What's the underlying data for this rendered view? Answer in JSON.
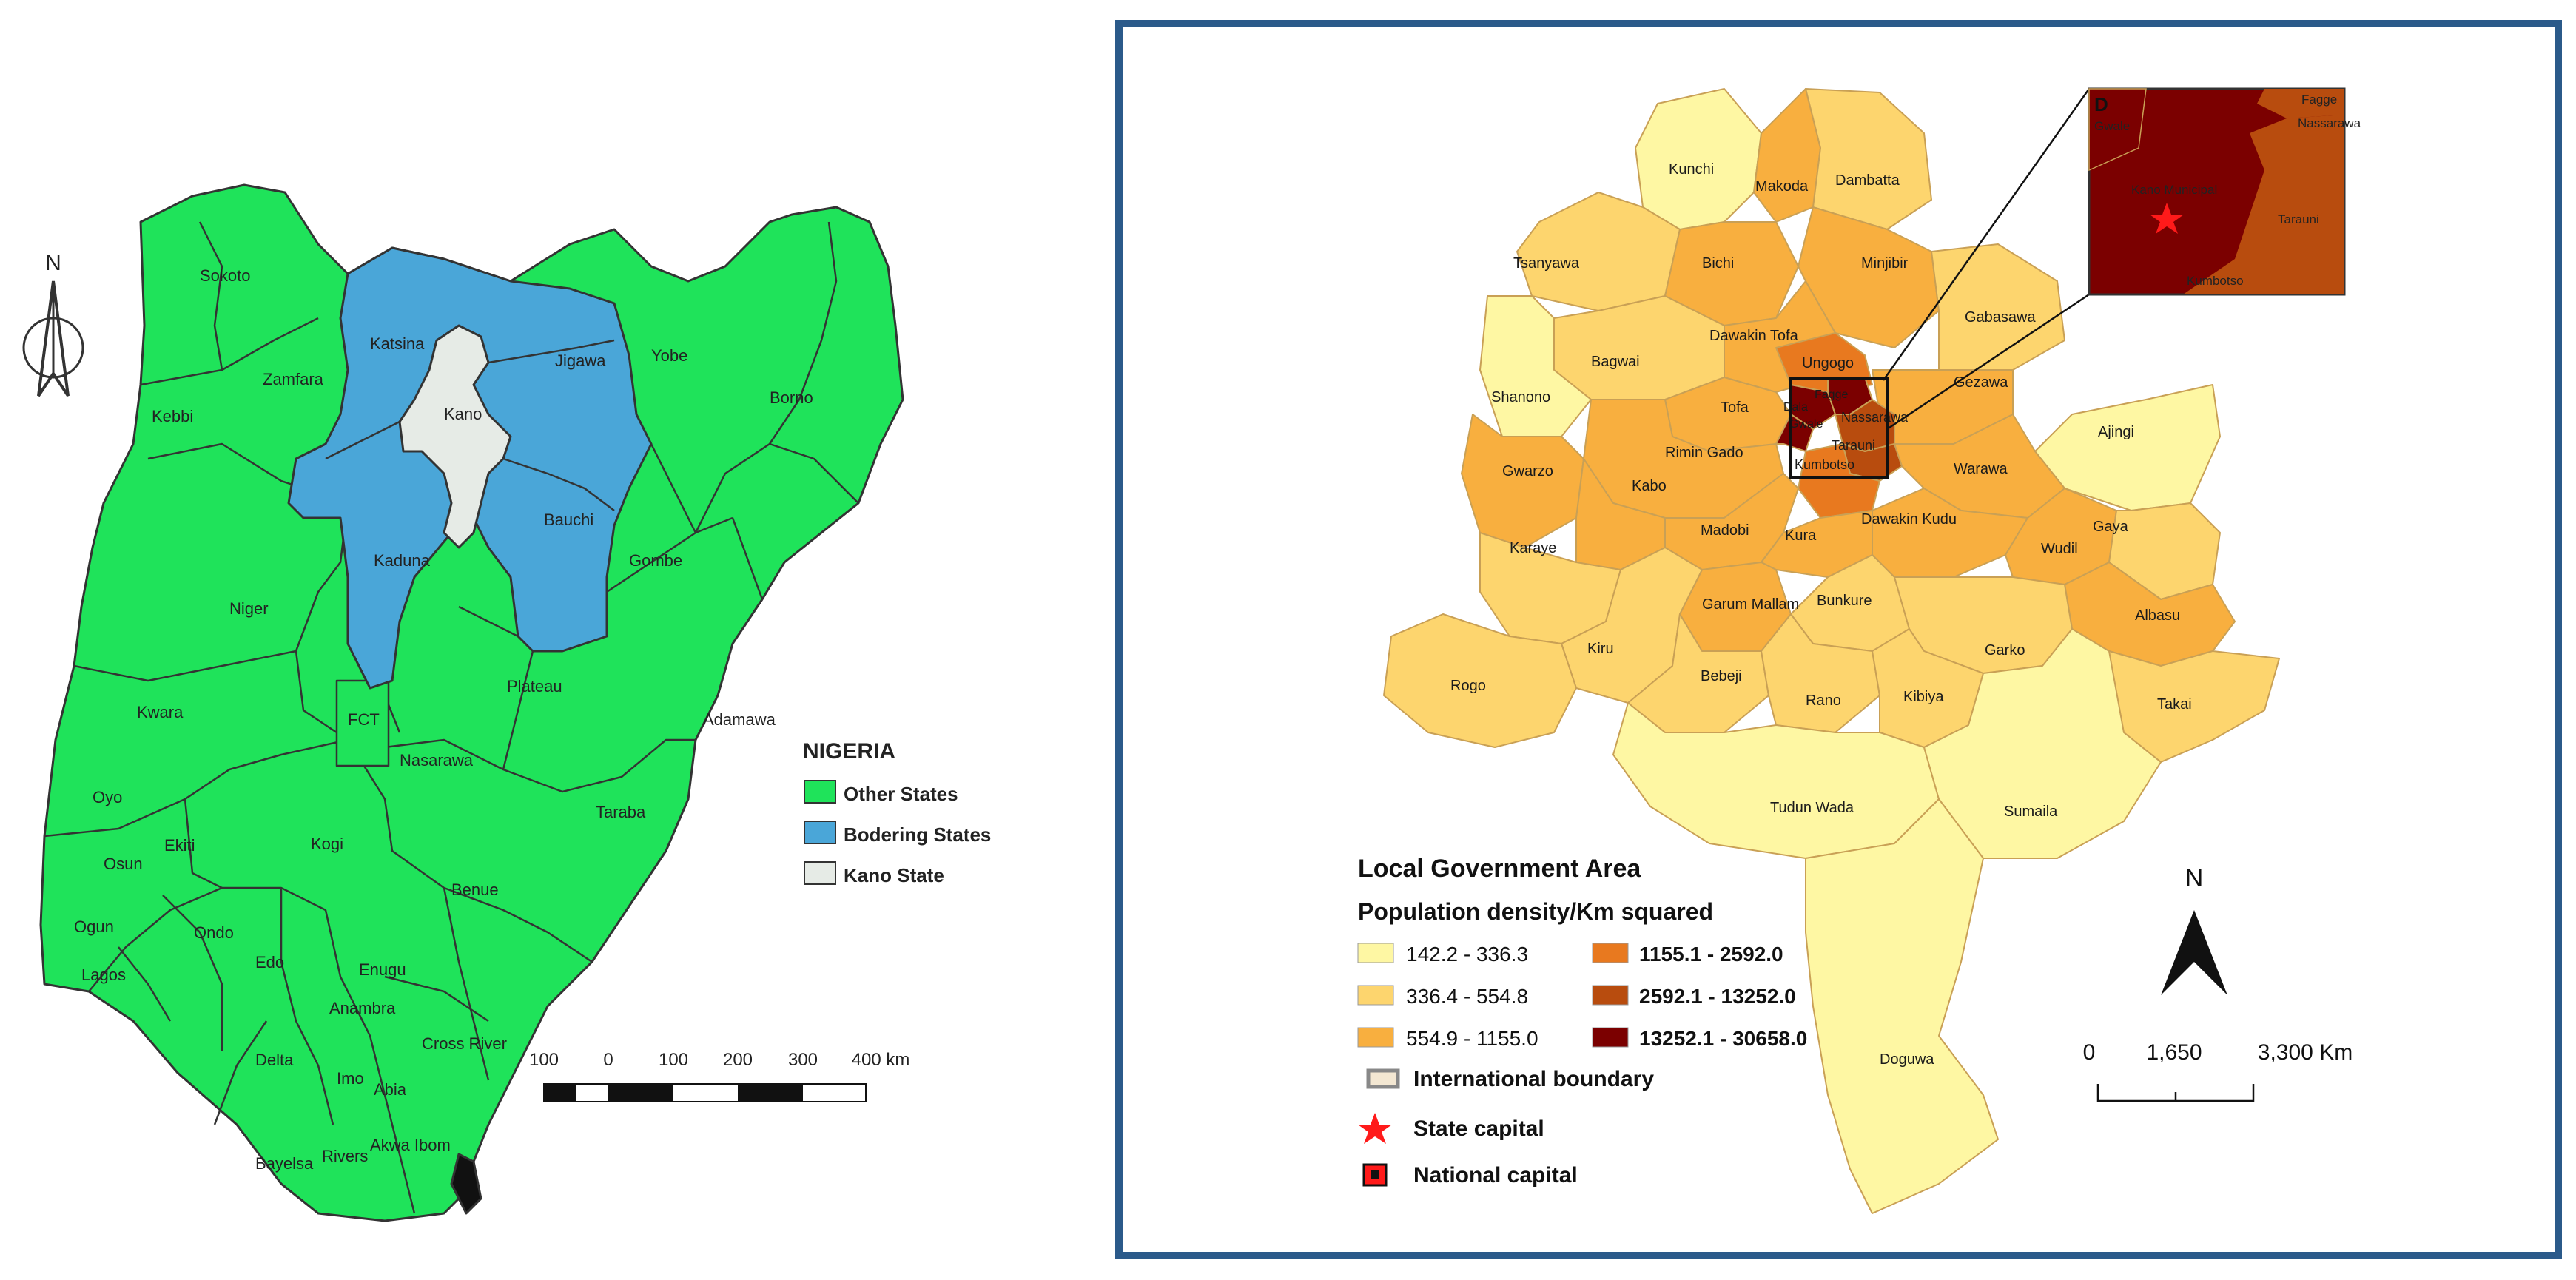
{
  "nigeria_map": {
    "north_arrow": {
      "label": "N"
    },
    "states": [
      {
        "name": "Sokoto",
        "status": "other"
      },
      {
        "name": "Zamfara",
        "status": "other"
      },
      {
        "name": "Kebbi",
        "status": "other"
      },
      {
        "name": "Katsina",
        "status": "bordering"
      },
      {
        "name": "Kano",
        "status": "kano"
      },
      {
        "name": "Jigawa",
        "status": "bordering"
      },
      {
        "name": "Yobe",
        "status": "other"
      },
      {
        "name": "Borno",
        "status": "other"
      },
      {
        "name": "Kaduna",
        "status": "bordering"
      },
      {
        "name": "Bauchi",
        "status": "bordering"
      },
      {
        "name": "Gombe",
        "status": "other"
      },
      {
        "name": "Niger",
        "status": "other"
      },
      {
        "name": "Plateau",
        "status": "other"
      },
      {
        "name": "Adamawa",
        "status": "other"
      },
      {
        "name": "Kwara",
        "status": "other"
      },
      {
        "name": "FCT",
        "status": "other"
      },
      {
        "name": "Nasarawa",
        "status": "other"
      },
      {
        "name": "Oyo",
        "status": "other"
      },
      {
        "name": "Taraba",
        "status": "other"
      },
      {
        "name": "Osun",
        "status": "other"
      },
      {
        "name": "Ekiti",
        "status": "other"
      },
      {
        "name": "Kogi",
        "status": "other"
      },
      {
        "name": "Benue",
        "status": "other"
      },
      {
        "name": "Ogun",
        "status": "other"
      },
      {
        "name": "Ondo",
        "status": "other"
      },
      {
        "name": "Edo",
        "status": "other"
      },
      {
        "name": "Enugu",
        "status": "other"
      },
      {
        "name": "Lagos",
        "status": "other"
      },
      {
        "name": "Anambra",
        "status": "other"
      },
      {
        "name": "Delta",
        "status": "other"
      },
      {
        "name": "Imo",
        "status": "other"
      },
      {
        "name": "Abia",
        "status": "other"
      },
      {
        "name": "Cross River",
        "status": "other"
      },
      {
        "name": "Bayelsa",
        "status": "other"
      },
      {
        "name": "Rivers",
        "status": "other"
      },
      {
        "name": "Akwa Ibom",
        "status": "other"
      }
    ],
    "legend": {
      "title": "NIGERIA",
      "items": [
        {
          "label": "Other States",
          "color": "#1fe35a"
        },
        {
          "label": "Bodering States",
          "color": "#4aa6d8"
        },
        {
          "label": "Kano State",
          "color": "#e6ebe6"
        }
      ]
    },
    "scale_bar": {
      "ticks": [
        "100",
        "0",
        "100",
        "200",
        "300",
        "400 km"
      ]
    }
  },
  "kano_map": {
    "lgas": [
      {
        "name": "Kunchi",
        "density_class": 1
      },
      {
        "name": "Makoda",
        "density_class": 3
      },
      {
        "name": "Dambatta",
        "density_class": 2
      },
      {
        "name": "Tsanyawa",
        "density_class": 2
      },
      {
        "name": "Bichi",
        "density_class": 3
      },
      {
        "name": "Minjibir",
        "density_class": 3
      },
      {
        "name": "Gabasawa",
        "density_class": 2
      },
      {
        "name": "Dawakin Tofa",
        "density_class": 3
      },
      {
        "name": "Bagwai",
        "density_class": 2
      },
      {
        "name": "Ungogo",
        "density_class": 4
      },
      {
        "name": "Gezawa",
        "density_class": 3
      },
      {
        "name": "Shanono",
        "density_class": 1
      },
      {
        "name": "Tofa",
        "density_class": 3
      },
      {
        "name": "Dala",
        "density_class": 6
      },
      {
        "name": "Fagge",
        "density_class": 6
      },
      {
        "name": "Gwale",
        "density_class": 6
      },
      {
        "name": "Nassarawa",
        "density_class": 5
      },
      {
        "name": "Tarauni",
        "density_class": 5
      },
      {
        "name": "Kumbotso",
        "density_class": 4
      },
      {
        "name": "Ajingi",
        "density_class": 1
      },
      {
        "name": "Rimin Gado",
        "density_class": 3
      },
      {
        "name": "Gwarzo",
        "density_class": 3
      },
      {
        "name": "Kabo",
        "density_class": 3
      },
      {
        "name": "Warawa",
        "density_class": 3
      },
      {
        "name": "Madobi",
        "density_class": 3
      },
      {
        "name": "Kura",
        "density_class": 3
      },
      {
        "name": "Dawakin Kudu",
        "density_class": 3
      },
      {
        "name": "Wudil",
        "density_class": 3
      },
      {
        "name": "Gaya",
        "density_class": 2
      },
      {
        "name": "Karaye",
        "density_class": 2
      },
      {
        "name": "Garum Mallam",
        "density_class": 3
      },
      {
        "name": "Bunkure",
        "density_class": 2
      },
      {
        "name": "Albasu",
        "density_class": 3
      },
      {
        "name": "Kiru",
        "density_class": 2
      },
      {
        "name": "Garko",
        "density_class": 2
      },
      {
        "name": "Rogo",
        "density_class": 2
      },
      {
        "name": "Bebeji",
        "density_class": 2
      },
      {
        "name": "Rano",
        "density_class": 2
      },
      {
        "name": "Kibiya",
        "density_class": 2
      },
      {
        "name": "Takai",
        "density_class": 2
      },
      {
        "name": "Tudun Wada",
        "density_class": 1
      },
      {
        "name": "Sumaila",
        "density_class": 1
      },
      {
        "name": "Doguwa",
        "density_class": 1
      }
    ],
    "inset": {
      "letter": "D",
      "labels": [
        "Fagge",
        "Gwale",
        "Nassarawa",
        "Kano Municipal",
        "Tarauni",
        "Kumbotso"
      ]
    },
    "legend": {
      "title": "Local Government Area",
      "subtitle": "Population density/Km squared",
      "classes": [
        {
          "range": "142.2 - 336.3",
          "color": "#fef7a3"
        },
        {
          "range": "336.4 - 554.8",
          "color": "#fdd56e"
        },
        {
          "range": "554.9 - 1155.0",
          "color": "#f8af3f"
        },
        {
          "range": "1155.1 - 2592.0",
          "color": "#e8791f"
        },
        {
          "range": "2592.1 - 13252.0",
          "color": "#b84c0e"
        },
        {
          "range": "13252.1 - 30658.0",
          "color": "#7b0000"
        }
      ],
      "symbols": [
        {
          "label": "International boundary",
          "icon": "boundary-icon"
        },
        {
          "label": "State capital",
          "icon": "red-star-icon"
        },
        {
          "label": "National capital",
          "icon": "square-dot-icon"
        }
      ]
    },
    "north_arrow": {
      "label": "N"
    },
    "scale_bar": {
      "ticks": [
        "0",
        "1,650",
        "3,300 Km"
      ]
    }
  }
}
